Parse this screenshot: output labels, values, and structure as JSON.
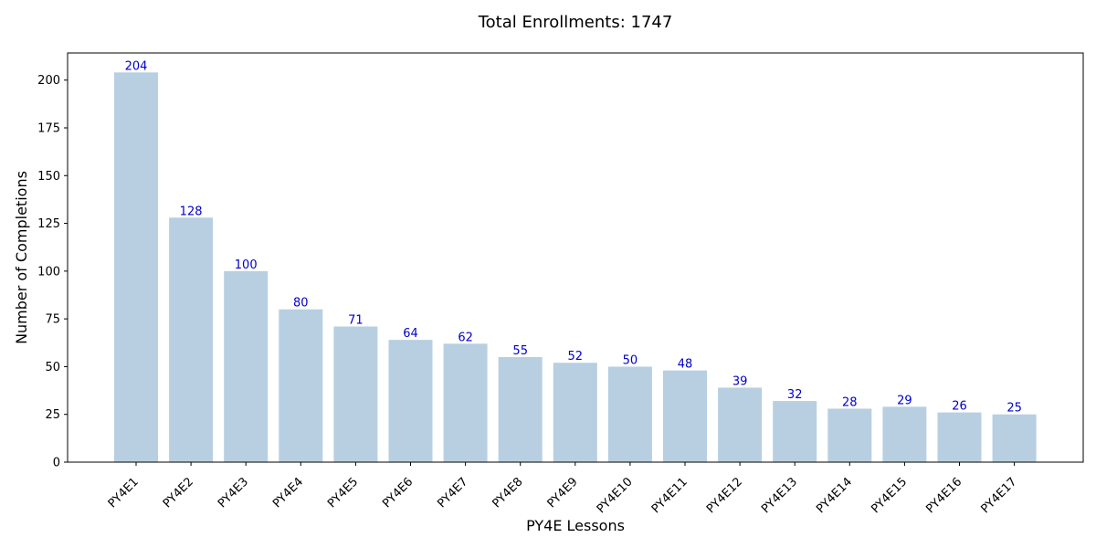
{
  "chart_data": {
    "type": "bar",
    "title": "Total Enrollments: 1747",
    "xlabel": "PY4E Lessons",
    "ylabel": "Number of Completions",
    "categories": [
      "PY4E1",
      "PY4E2",
      "PY4E3",
      "PY4E4",
      "PY4E5",
      "PY4E6",
      "PY4E7",
      "PY4E8",
      "PY4E9",
      "PY4E10",
      "PY4E11",
      "PY4E12",
      "PY4E13",
      "PY4E14",
      "PY4E15",
      "PY4E16",
      "PY4E17"
    ],
    "values": [
      204,
      128,
      100,
      80,
      71,
      64,
      62,
      55,
      52,
      50,
      48,
      39,
      32,
      28,
      29,
      26,
      25
    ],
    "data_labels": [
      "204",
      "128",
      "100",
      "80",
      "71",
      "64",
      "62",
      "55",
      "52",
      "50",
      "48",
      "39",
      "32",
      "28",
      "29",
      "26",
      "25"
    ],
    "yticks": [
      0,
      25,
      50,
      75,
      100,
      125,
      150,
      175,
      200
    ],
    "ytick_labels": [
      "0",
      "25",
      "50",
      "75",
      "100",
      "125",
      "150",
      "175",
      "200"
    ],
    "ylim": [
      0,
      214.2
    ],
    "grid": false,
    "bar_color": "#b7cfe1",
    "label_color": "#0000cc"
  }
}
